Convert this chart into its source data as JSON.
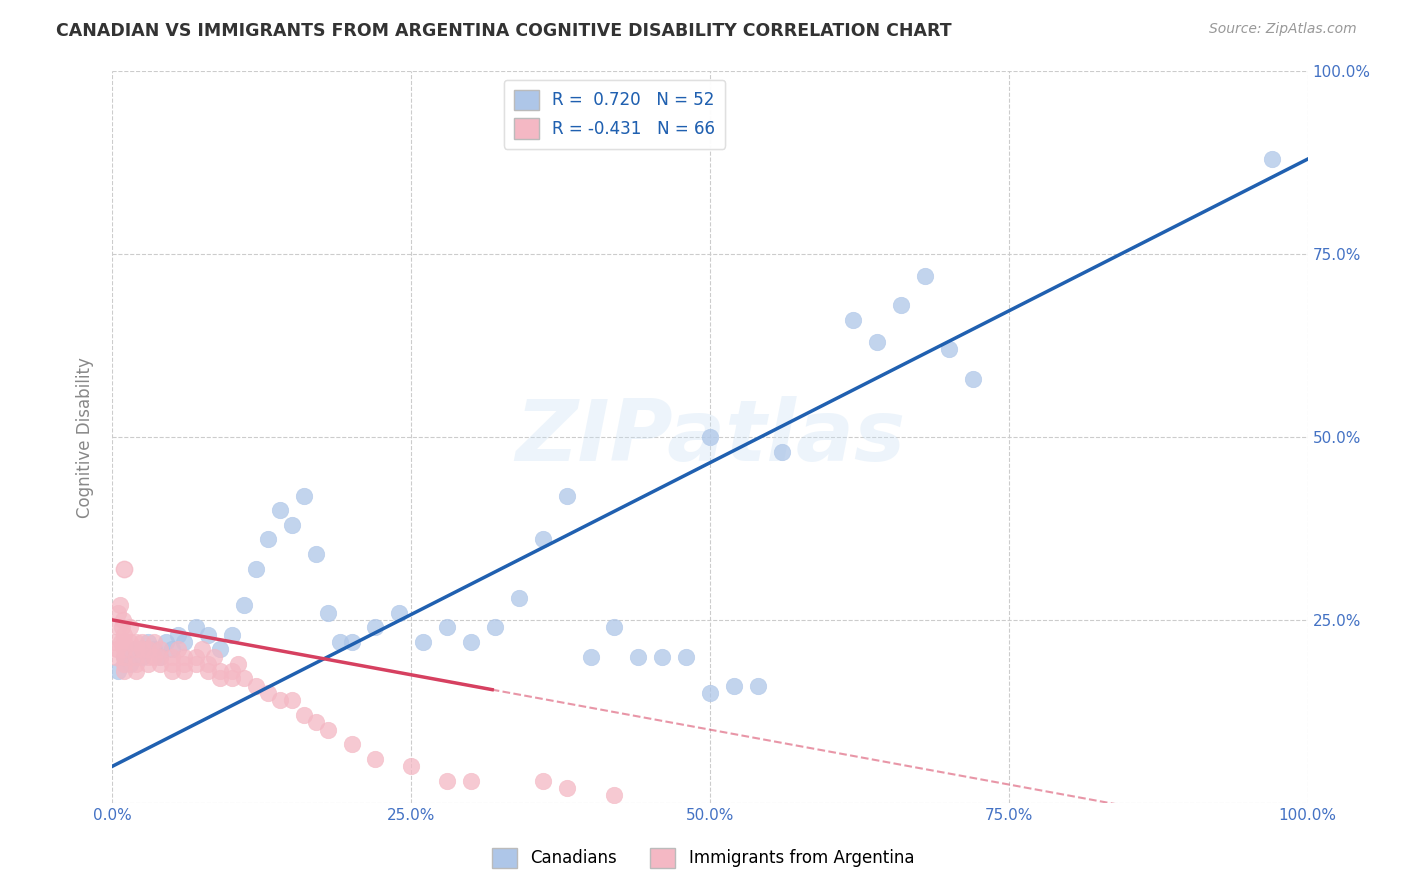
{
  "title": "CANADIAN VS IMMIGRANTS FROM ARGENTINA COGNITIVE DISABILITY CORRELATION CHART",
  "source": "Source: ZipAtlas.com",
  "ylabel": "Cognitive Disability",
  "xlim": [
    0.0,
    100.0
  ],
  "ylim": [
    0.0,
    100.0
  ],
  "background_color": "#ffffff",
  "grid_color": "#cccccc",
  "watermark": "ZIPatlas",
  "canadians_color": "#aec6e8",
  "canadians_edge_color": "#7bafd4",
  "canadians_line_color": "#2060b0",
  "argentina_color": "#f4b8c4",
  "argentina_edge_color": "#e8849a",
  "argentina_line_color": "#d64060",
  "legend_R_canadians": "R =  0.720   N = 52",
  "legend_R_argentina": "R = -0.431   N = 66",
  "legend_text_color": "#2060b0",
  "tick_color": "#4472c4",
  "canadians_x": [
    0.5,
    1.0,
    1.5,
    2.0,
    2.5,
    3.0,
    3.5,
    4.0,
    4.5,
    5.0,
    5.5,
    6.0,
    7.0,
    8.0,
    9.0,
    10.0,
    11.0,
    12.0,
    13.0,
    14.0,
    15.0,
    16.0,
    17.0,
    18.0,
    19.0,
    20.0,
    22.0,
    24.0,
    26.0,
    28.0,
    30.0,
    32.0,
    34.0,
    36.0,
    38.0,
    40.0,
    42.0,
    44.0,
    46.0,
    48.0,
    50.0,
    52.0,
    54.0,
    56.0,
    62.0,
    64.0,
    66.0,
    68.0,
    70.0,
    72.0,
    97.0,
    50.0
  ],
  "canadians_y": [
    18,
    20,
    19,
    21,
    20,
    22,
    21,
    20,
    22,
    21,
    23,
    22,
    24,
    23,
    21,
    23,
    27,
    32,
    36,
    40,
    38,
    42,
    34,
    26,
    22,
    22,
    24,
    26,
    22,
    24,
    22,
    24,
    28,
    36,
    42,
    20,
    24,
    20,
    20,
    20,
    15,
    16,
    16,
    48,
    66,
    63,
    68,
    72,
    62,
    58,
    88,
    50
  ],
  "argentina_x": [
    0.2,
    0.3,
    0.4,
    0.5,
    0.5,
    0.6,
    0.7,
    0.8,
    0.9,
    1.0,
    1.0,
    1.0,
    1.0,
    1.0,
    1.0,
    1.5,
    1.5,
    2.0,
    2.0,
    2.0,
    2.0,
    2.0,
    2.5,
    2.5,
    3.0,
    3.0,
    3.0,
    3.5,
    3.5,
    4.0,
    4.0,
    4.0,
    5.0,
    5.0,
    5.0,
    5.5,
    6.0,
    6.0,
    6.0,
    7.0,
    7.0,
    7.5,
    8.0,
    8.0,
    8.5,
    9.0,
    9.0,
    10.0,
    10.0,
    10.5,
    11.0,
    12.0,
    13.0,
    14.0,
    15.0,
    16.0,
    17.0,
    18.0,
    20.0,
    22.0,
    25.0,
    28.0,
    30.0,
    36.0,
    38.0,
    42.0
  ],
  "argentina_y": [
    22,
    20,
    21,
    26,
    24,
    27,
    22,
    24,
    25,
    23,
    22,
    21,
    20,
    19,
    18,
    22,
    24,
    22,
    21,
    20,
    19,
    18,
    22,
    21,
    21,
    20,
    19,
    22,
    20,
    21,
    20,
    19,
    20,
    19,
    18,
    21,
    20,
    19,
    18,
    20,
    19,
    21,
    19,
    18,
    20,
    18,
    17,
    18,
    17,
    19,
    17,
    16,
    15,
    14,
    14,
    12,
    11,
    10,
    8,
    6,
    5,
    3,
    3,
    3,
    2,
    1
  ],
  "argentina_pink_outlier_x": [
    1.0
  ],
  "argentina_pink_outlier_y": [
    32
  ]
}
